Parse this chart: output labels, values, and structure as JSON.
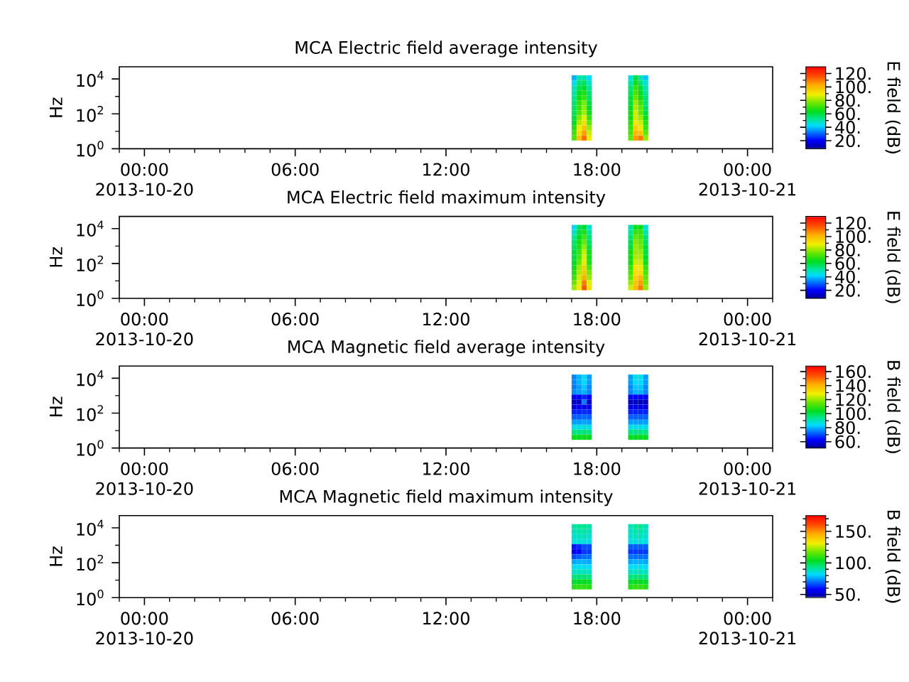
{
  "chart_data": [
    {
      "type": "scatter",
      "title": "MCA Electric field average intensity",
      "ylabel": "Hz",
      "clabel": "E field (dB)",
      "log": "y",
      "marker": "square",
      "x": [
        17.1,
        17.3,
        17.5,
        17.7,
        19.35,
        19.55,
        19.75,
        19.95,
        17.1,
        17.3,
        17.5,
        17.7,
        19.35,
        19.55,
        19.75,
        19.95,
        17.1,
        17.3,
        17.5,
        17.7,
        19.35,
        19.55,
        19.75,
        19.95,
        17.1,
        17.3,
        17.5,
        17.7,
        19.35,
        19.55,
        19.75,
        19.95,
        17.1,
        17.3,
        17.5,
        17.7,
        19.35,
        19.55,
        19.75,
        19.95,
        17.1,
        17.3,
        17.5,
        17.7,
        19.35,
        19.55,
        19.75,
        19.95,
        17.1,
        17.3,
        17.5,
        17.7,
        19.35,
        19.55,
        19.75,
        19.95,
        17.1,
        17.3,
        17.5,
        17.7,
        19.35,
        19.55,
        19.75,
        19.95,
        17.1,
        17.3,
        17.5,
        17.7,
        19.35,
        19.55,
        19.75,
        19.95,
        17.1,
        17.3,
        17.5,
        17.7,
        19.35,
        19.55,
        19.75,
        19.95,
        17.1,
        17.3,
        17.5,
        17.7,
        19.35,
        19.55,
        19.75,
        19.95,
        17.1,
        17.3,
        17.5,
        17.7,
        19.35,
        19.55,
        19.75,
        19.95,
        17.1,
        17.3,
        17.5,
        17.7,
        19.35,
        19.55,
        19.75,
        19.95
      ],
      "values": [
        11700,
        11700,
        11700,
        11700,
        11700,
        11700,
        11700,
        11700,
        6000,
        6000,
        6000,
        6000,
        6000,
        6000,
        6000,
        6000,
        3100,
        3100,
        3100,
        3100,
        3100,
        3100,
        3100,
        3100,
        1600,
        1600,
        1600,
        1600,
        1600,
        1600,
        1600,
        1600,
        830,
        830,
        830,
        830,
        830,
        830,
        830,
        830,
        430,
        430,
        430,
        430,
        430,
        430,
        430,
        430,
        220,
        220,
        220,
        220,
        220,
        220,
        220,
        220,
        113,
        113,
        113,
        113,
        113,
        113,
        113,
        113,
        58,
        58,
        58,
        58,
        58,
        58,
        58,
        58,
        30,
        30,
        30,
        30,
        30,
        30,
        30,
        30,
        15.5,
        15.5,
        15.5,
        15.5,
        15.5,
        15.5,
        15.5,
        15.5,
        8,
        8,
        8,
        8,
        8,
        8,
        8,
        8,
        4.1,
        4.1,
        4.1,
        4.1,
        4.1,
        4.1,
        4.1,
        4.1
      ],
      "cvalues": [
        38,
        50,
        50,
        42,
        45,
        60,
        50,
        40,
        42,
        55,
        57,
        47,
        50,
        65,
        55,
        45,
        48,
        58,
        62,
        52,
        55,
        70,
        60,
        50,
        50,
        62,
        67,
        55,
        57,
        72,
        62,
        52,
        52,
        65,
        70,
        57,
        60,
        75,
        65,
        55,
        55,
        68,
        78,
        60,
        60,
        80,
        70,
        55,
        56,
        70,
        80,
        62,
        62,
        82,
        75,
        57,
        57,
        72,
        82,
        65,
        65,
        85,
        75,
        60,
        60,
        78,
        88,
        70,
        65,
        85,
        80,
        65,
        62,
        82,
        92,
        75,
        68,
        90,
        85,
        68,
        67,
        88,
        98,
        80,
        70,
        95,
        90,
        70,
        70,
        92,
        105,
        85,
        72,
        100,
        97,
        75,
        72,
        98,
        112,
        90,
        75,
        105,
        110,
        80
      ],
      "xlim": [
        -1,
        25
      ],
      "xticks": [
        {
          "value": -1,
          "label": null
        },
        {
          "value": 0,
          "label": "00:00\n2013-10-20"
        },
        {
          "value": 1,
          "label": null
        },
        {
          "value": 2,
          "label": null
        },
        {
          "value": 3,
          "label": null
        },
        {
          "value": 4,
          "label": null
        },
        {
          "value": 5,
          "label": null
        },
        {
          "value": 6,
          "label": "06:00"
        },
        {
          "value": 7,
          "label": null
        },
        {
          "value": 8,
          "label": null
        },
        {
          "value": 9,
          "label": null
        },
        {
          "value": 10,
          "label": null
        },
        {
          "value": 11,
          "label": null
        },
        {
          "value": 12,
          "label": "12:00"
        },
        {
          "value": 13,
          "label": null
        },
        {
          "value": 14,
          "label": null
        },
        {
          "value": 15,
          "label": null
        },
        {
          "value": 16,
          "label": null
        },
        {
          "value": 17,
          "label": null
        },
        {
          "value": 18,
          "label": "18:00"
        },
        {
          "value": 19,
          "label": null
        },
        {
          "value": 20,
          "label": null
        },
        {
          "value": 21,
          "label": null
        },
        {
          "value": 22,
          "label": null
        },
        {
          "value": 23,
          "label": null
        },
        {
          "value": 24,
          "label": "00:00\n2013-10-21"
        },
        {
          "value": 25,
          "label": null
        }
      ],
      "ylim": [
        1,
        50000
      ],
      "yticks": [
        {
          "value": 1,
          "label": "10$^{0}$"
        },
        {
          "value": 10,
          "label": null
        },
        {
          "value": 100,
          "label": "10$^{2}$"
        },
        {
          "value": 1000,
          "label": null
        },
        {
          "value": 10000,
          "label": "10$^{4}$"
        }
      ],
      "clim": [
        8,
        130
      ],
      "cticks": [
        {
          "value": 20,
          "label": "20."
        },
        {
          "value": 30,
          "label": null
        },
        {
          "value": 40,
          "label": "40."
        },
        {
          "value": 50,
          "label": null
        },
        {
          "value": 60,
          "label": "60."
        },
        {
          "value": 70,
          "label": null
        },
        {
          "value": 80,
          "label": "80."
        },
        {
          "value": 90,
          "label": null
        },
        {
          "value": 100,
          "label": "100."
        },
        {
          "value": 110,
          "label": null
        },
        {
          "value": 120,
          "label": "120."
        }
      ]
    },
    {
      "type": "scatter",
      "title": "MCA Electric field maximum intensity",
      "ylabel": "Hz",
      "clabel": "E field (dB)",
      "log": "y",
      "marker": "square",
      "x": [
        17.1,
        17.3,
        17.5,
        17.7,
        19.35,
        19.55,
        19.75,
        19.95,
        17.1,
        17.3,
        17.5,
        17.7,
        19.35,
        19.55,
        19.75,
        19.95,
        17.1,
        17.3,
        17.5,
        17.7,
        19.35,
        19.55,
        19.75,
        19.95,
        17.1,
        17.3,
        17.5,
        17.7,
        19.35,
        19.55,
        19.75,
        19.95,
        17.1,
        17.3,
        17.5,
        17.7,
        19.35,
        19.55,
        19.75,
        19.95,
        17.1,
        17.3,
        17.5,
        17.7,
        19.35,
        19.55,
        19.75,
        19.95,
        17.1,
        17.3,
        17.5,
        17.7,
        19.35,
        19.55,
        19.75,
        19.95,
        17.1,
        17.3,
        17.5,
        17.7,
        19.35,
        19.55,
        19.75,
        19.95,
        17.1,
        17.3,
        17.5,
        17.7,
        19.35,
        19.55,
        19.75,
        19.95,
        17.1,
        17.3,
        17.5,
        17.7,
        19.35,
        19.55,
        19.75,
        19.95,
        17.1,
        17.3,
        17.5,
        17.7,
        19.35,
        19.55,
        19.75,
        19.95,
        17.1,
        17.3,
        17.5,
        17.7,
        19.35,
        19.55,
        19.75,
        19.95,
        17.1,
        17.3,
        17.5,
        17.7,
        19.35,
        19.55,
        19.75,
        19.95
      ],
      "values": [
        11700,
        11700,
        11700,
        11700,
        11700,
        11700,
        11700,
        11700,
        6000,
        6000,
        6000,
        6000,
        6000,
        6000,
        6000,
        6000,
        3100,
        3100,
        3100,
        3100,
        3100,
        3100,
        3100,
        3100,
        1600,
        1600,
        1600,
        1600,
        1600,
        1600,
        1600,
        1600,
        830,
        830,
        830,
        830,
        830,
        830,
        830,
        830,
        430,
        430,
        430,
        430,
        430,
        430,
        430,
        430,
        220,
        220,
        220,
        220,
        220,
        220,
        220,
        220,
        113,
        113,
        113,
        113,
        113,
        113,
        113,
        113,
        58,
        58,
        58,
        58,
        58,
        58,
        58,
        58,
        30,
        30,
        30,
        30,
        30,
        30,
        30,
        30,
        15.5,
        15.5,
        15.5,
        15.5,
        15.5,
        15.5,
        15.5,
        15.5,
        8,
        8,
        8,
        8,
        8,
        8,
        8,
        8,
        4.1,
        4.1,
        4.1,
        4.1,
        4.1,
        4.1,
        4.1,
        4.1
      ],
      "cvalues": [
        42,
        58,
        62,
        47,
        50,
        65,
        65,
        45,
        47,
        60,
        67,
        52,
        52,
        70,
        70,
        50,
        52,
        62,
        72,
        55,
        55,
        75,
        72,
        55,
        55,
        65,
        76,
        57,
        58,
        78,
        75,
        57,
        57,
        67,
        80,
        60,
        60,
        80,
        77,
        60,
        60,
        70,
        85,
        65,
        65,
        80,
        80,
        60,
        60,
        72,
        87,
        66,
        65,
        82,
        82,
        62,
        62,
        75,
        90,
        67,
        65,
        85,
        85,
        65,
        65,
        80,
        95,
        72,
        70,
        90,
        90,
        70,
        67,
        82,
        97,
        77,
        72,
        92,
        92,
        72,
        70,
        85,
        102,
        80,
        75,
        95,
        100,
        75,
        75,
        87,
        110,
        87,
        80,
        97,
        105,
        77,
        80,
        90,
        115,
        92,
        85,
        100,
        110,
        80
      ],
      "xlim": [
        -1,
        25
      ],
      "xticks": [
        {
          "value": -1,
          "label": null
        },
        {
          "value": 0,
          "label": "00:00\n2013-10-20"
        },
        {
          "value": 1,
          "label": null
        },
        {
          "value": 2,
          "label": null
        },
        {
          "value": 3,
          "label": null
        },
        {
          "value": 4,
          "label": null
        },
        {
          "value": 5,
          "label": null
        },
        {
          "value": 6,
          "label": "06:00"
        },
        {
          "value": 7,
          "label": null
        },
        {
          "value": 8,
          "label": null
        },
        {
          "value": 9,
          "label": null
        },
        {
          "value": 10,
          "label": null
        },
        {
          "value": 11,
          "label": null
        },
        {
          "value": 12,
          "label": "12:00"
        },
        {
          "value": 13,
          "label": null
        },
        {
          "value": 14,
          "label": null
        },
        {
          "value": 15,
          "label": null
        },
        {
          "value": 16,
          "label": null
        },
        {
          "value": 17,
          "label": null
        },
        {
          "value": 18,
          "label": "18:00"
        },
        {
          "value": 19,
          "label": null
        },
        {
          "value": 20,
          "label": null
        },
        {
          "value": 21,
          "label": null
        },
        {
          "value": 22,
          "label": null
        },
        {
          "value": 23,
          "label": null
        },
        {
          "value": 24,
          "label": "00:00\n2013-10-21"
        },
        {
          "value": 25,
          "label": null
        }
      ],
      "ylim": [
        1,
        50000
      ],
      "yticks": [
        {
          "value": 1,
          "label": "10$^{0}$"
        },
        {
          "value": 10,
          "label": null
        },
        {
          "value": 100,
          "label": "10$^{2}$"
        },
        {
          "value": 1000,
          "label": null
        },
        {
          "value": 10000,
          "label": "10$^{4}$"
        }
      ],
      "clim": [
        8,
        130
      ],
      "cticks": [
        {
          "value": 20,
          "label": "20."
        },
        {
          "value": 30,
          "label": null
        },
        {
          "value": 40,
          "label": "40."
        },
        {
          "value": 50,
          "label": null
        },
        {
          "value": 60,
          "label": "60."
        },
        {
          "value": 70,
          "label": null
        },
        {
          "value": 80,
          "label": "80."
        },
        {
          "value": 90,
          "label": null
        },
        {
          "value": 100,
          "label": "100."
        },
        {
          "value": 110,
          "label": null
        },
        {
          "value": 120,
          "label": "120."
        }
      ]
    },
    {
      "type": "scatter",
      "title": "MCA Magnetic field average intensity",
      "ylabel": "Hz",
      "clabel": "B field (dB)",
      "log": "y",
      "marker": "square",
      "x": [
        17.1,
        17.3,
        17.5,
        17.7,
        19.35,
        19.55,
        19.75,
        19.95,
        17.1,
        17.3,
        17.5,
        17.7,
        19.35,
        19.55,
        19.75,
        19.95,
        17.1,
        17.3,
        17.5,
        17.7,
        19.35,
        19.55,
        19.75,
        19.95,
        17.1,
        17.3,
        17.5,
        17.7,
        19.35,
        19.55,
        19.75,
        19.95,
        17.1,
        17.3,
        17.5,
        17.7,
        19.35,
        19.55,
        19.75,
        19.95,
        17.1,
        17.3,
        17.5,
        17.7,
        19.35,
        19.55,
        19.75,
        19.95,
        17.1,
        17.3,
        17.5,
        17.7,
        19.35,
        19.55,
        19.75,
        19.95,
        17.1,
        17.3,
        17.5,
        17.7,
        19.35,
        19.55,
        19.75,
        19.95,
        17.1,
        17.3,
        17.5,
        17.7,
        19.35,
        19.55,
        19.75,
        19.95,
        17.1,
        17.3,
        17.5,
        17.7,
        19.35,
        19.55,
        19.75,
        19.95,
        17.1,
        17.3,
        17.5,
        17.7,
        19.35,
        19.55,
        19.75,
        19.95,
        17.1,
        17.3,
        17.5,
        17.7,
        19.35,
        19.55,
        19.75,
        19.95,
        17.1,
        17.3,
        17.5,
        17.7,
        19.35,
        19.55,
        19.75,
        19.95
      ],
      "values": [
        11700,
        11700,
        11700,
        11700,
        11700,
        11700,
        11700,
        11700,
        6000,
        6000,
        6000,
        6000,
        6000,
        6000,
        6000,
        6000,
        3100,
        3100,
        3100,
        3100,
        3100,
        3100,
        3100,
        3100,
        1600,
        1600,
        1600,
        1600,
        1600,
        1600,
        1600,
        1600,
        830,
        830,
        830,
        830,
        830,
        830,
        830,
        830,
        430,
        430,
        430,
        430,
        430,
        430,
        430,
        430,
        220,
        220,
        220,
        220,
        220,
        220,
        220,
        220,
        113,
        113,
        113,
        113,
        113,
        113,
        113,
        113,
        58,
        58,
        58,
        58,
        58,
        58,
        58,
        58,
        30,
        30,
        30,
        30,
        30,
        30,
        30,
        30,
        15.5,
        15.5,
        15.5,
        15.5,
        15.5,
        15.5,
        15.5,
        15.5,
        8,
        8,
        8,
        8,
        8,
        8,
        8,
        8,
        4.1,
        4.1,
        4.1,
        4.1,
        4.1,
        4.1,
        4.1,
        4.1
      ],
      "cvalues": [
        76,
        80,
        85,
        78,
        78,
        86,
        86,
        78,
        76,
        80,
        84,
        78,
        78,
        84,
        84,
        78,
        75,
        78,
        82,
        76,
        76,
        82,
        82,
        76,
        76,
        78,
        80,
        76,
        76,
        80,
        80,
        76,
        62,
        62,
        66,
        62,
        62,
        62,
        62,
        62,
        56,
        56,
        75,
        56,
        56,
        56,
        56,
        56,
        59,
        60,
        61,
        60,
        60,
        60,
        60,
        60,
        66,
        66,
        67,
        66,
        66,
        66,
        66,
        66,
        72,
        72,
        73,
        72,
        72,
        72,
        72,
        72,
        78,
        78,
        79,
        78,
        78,
        78,
        78,
        78,
        86,
        86,
        87,
        86,
        86,
        86,
        86,
        86,
        95,
        95,
        96,
        95,
        95,
        95,
        95,
        95,
        104,
        104,
        105,
        104,
        104,
        104,
        104,
        104
      ],
      "xlim": [
        -1,
        25
      ],
      "xticks": [
        {
          "value": -1,
          "label": null
        },
        {
          "value": 0,
          "label": "00:00\n2013-10-20"
        },
        {
          "value": 1,
          "label": null
        },
        {
          "value": 2,
          "label": null
        },
        {
          "value": 3,
          "label": null
        },
        {
          "value": 4,
          "label": null
        },
        {
          "value": 5,
          "label": null
        },
        {
          "value": 6,
          "label": "06:00"
        },
        {
          "value": 7,
          "label": null
        },
        {
          "value": 8,
          "label": null
        },
        {
          "value": 9,
          "label": null
        },
        {
          "value": 10,
          "label": null
        },
        {
          "value": 11,
          "label": null
        },
        {
          "value": 12,
          "label": "12:00"
        },
        {
          "value": 13,
          "label": null
        },
        {
          "value": 14,
          "label": null
        },
        {
          "value": 15,
          "label": null
        },
        {
          "value": 16,
          "label": null
        },
        {
          "value": 17,
          "label": null
        },
        {
          "value": 18,
          "label": "18:00"
        },
        {
          "value": 19,
          "label": null
        },
        {
          "value": 20,
          "label": null
        },
        {
          "value": 21,
          "label": null
        },
        {
          "value": 22,
          "label": null
        },
        {
          "value": 23,
          "label": null
        },
        {
          "value": 24,
          "label": "00:00\n2013-10-21"
        },
        {
          "value": 25,
          "label": null
        }
      ],
      "ylim": [
        1,
        50000
      ],
      "yticks": [
        {
          "value": 1,
          "label": "10$^{0}$"
        },
        {
          "value": 10,
          "label": null
        },
        {
          "value": 100,
          "label": "10$^{2}$"
        },
        {
          "value": 1000,
          "label": null
        },
        {
          "value": 10000,
          "label": "10$^{4}$"
        }
      ],
      "clim": [
        51,
        168
      ],
      "cticks": [
        {
          "value": 60,
          "label": "60."
        },
        {
          "value": 70,
          "label": null
        },
        {
          "value": 80,
          "label": "80."
        },
        {
          "value": 90,
          "label": null
        },
        {
          "value": 100,
          "label": "100."
        },
        {
          "value": 110,
          "label": null
        },
        {
          "value": 120,
          "label": "120."
        },
        {
          "value": 130,
          "label": null
        },
        {
          "value": 140,
          "label": "140."
        },
        {
          "value": 150,
          "label": null
        },
        {
          "value": 160,
          "label": "160."
        }
      ]
    },
    {
      "type": "scatter",
      "title": "MCA Magnetic field maximum intensity",
      "ylabel": "Hz",
      "clabel": "B field (dB)",
      "log": "y",
      "marker": "square",
      "x": [
        17.1,
        17.3,
        17.5,
        17.7,
        19.35,
        19.55,
        19.75,
        19.95,
        17.1,
        17.3,
        17.5,
        17.7,
        19.35,
        19.55,
        19.75,
        19.95,
        17.1,
        17.3,
        17.5,
        17.7,
        19.35,
        19.55,
        19.75,
        19.95,
        17.1,
        17.3,
        17.5,
        17.7,
        19.35,
        19.55,
        19.75,
        19.95,
        17.1,
        17.3,
        17.5,
        17.7,
        19.35,
        19.55,
        19.75,
        19.95,
        17.1,
        17.3,
        17.5,
        17.7,
        19.35,
        19.55,
        19.75,
        19.95,
        17.1,
        17.3,
        17.5,
        17.7,
        19.35,
        19.55,
        19.75,
        19.95,
        17.1,
        17.3,
        17.5,
        17.7,
        19.35,
        19.55,
        19.75,
        19.95,
        17.1,
        17.3,
        17.5,
        17.7,
        19.35,
        19.55,
        19.75,
        19.95,
        17.1,
        17.3,
        17.5,
        17.7,
        19.35,
        19.55,
        19.75,
        19.95,
        17.1,
        17.3,
        17.5,
        17.7,
        19.35,
        19.55,
        19.75,
        19.95,
        17.1,
        17.3,
        17.5,
        17.7,
        19.35,
        19.55,
        19.75,
        19.95,
        17.1,
        17.3,
        17.5,
        17.7,
        19.35,
        19.55,
        19.75,
        19.95
      ],
      "values": [
        11700,
        11700,
        11700,
        11700,
        11700,
        11700,
        11700,
        11700,
        6000,
        6000,
        6000,
        6000,
        6000,
        6000,
        6000,
        6000,
        3100,
        3100,
        3100,
        3100,
        3100,
        3100,
        3100,
        3100,
        1600,
        1600,
        1600,
        1600,
        1600,
        1600,
        1600,
        1600,
        830,
        830,
        830,
        830,
        830,
        830,
        830,
        830,
        430,
        430,
        430,
        430,
        430,
        430,
        430,
        430,
        220,
        220,
        220,
        220,
        220,
        220,
        220,
        220,
        113,
        113,
        113,
        113,
        113,
        113,
        113,
        113,
        58,
        58,
        58,
        58,
        58,
        58,
        58,
        58,
        30,
        30,
        30,
        30,
        30,
        30,
        30,
        30,
        15.5,
        15.5,
        15.5,
        15.5,
        15.5,
        15.5,
        15.5,
        15.5,
        8,
        8,
        8,
        8,
        8,
        8,
        8,
        8,
        4.1,
        4.1,
        4.1,
        4.1,
        4.1,
        4.1,
        4.1,
        4.1
      ],
      "cvalues": [
        90,
        92,
        92,
        90,
        88,
        92,
        92,
        88,
        88,
        90,
        90,
        88,
        87,
        90,
        90,
        87,
        86,
        88,
        88,
        86,
        86,
        88,
        88,
        86,
        84,
        85,
        85,
        84,
        84,
        85,
        85,
        84,
        60,
        62,
        66,
        66,
        68,
        68,
        68,
        68,
        56,
        58,
        64,
        64,
        64,
        64,
        64,
        64,
        66,
        68,
        70,
        70,
        70,
        70,
        70,
        70,
        76,
        77,
        77,
        76,
        76,
        77,
        77,
        76,
        82,
        83,
        83,
        82,
        82,
        83,
        83,
        82,
        87,
        88,
        88,
        87,
        87,
        88,
        88,
        87,
        94,
        95,
        95,
        94,
        94,
        95,
        95,
        94,
        102,
        103,
        103,
        102,
        102,
        103,
        103,
        102,
        108,
        110,
        110,
        108,
        108,
        110,
        110,
        108
      ],
      "xlim": [
        -1,
        25
      ],
      "xticks": [
        {
          "value": -1,
          "label": null
        },
        {
          "value": 0,
          "label": "00:00\n2013-10-20"
        },
        {
          "value": 1,
          "label": null
        },
        {
          "value": 2,
          "label": null
        },
        {
          "value": 3,
          "label": null
        },
        {
          "value": 4,
          "label": null
        },
        {
          "value": 5,
          "label": null
        },
        {
          "value": 6,
          "label": "06:00"
        },
        {
          "value": 7,
          "label": null
        },
        {
          "value": 8,
          "label": null
        },
        {
          "value": 9,
          "label": null
        },
        {
          "value": 10,
          "label": null
        },
        {
          "value": 11,
          "label": null
        },
        {
          "value": 12,
          "label": "12:00"
        },
        {
          "value": 13,
          "label": null
        },
        {
          "value": 14,
          "label": null
        },
        {
          "value": 15,
          "label": null
        },
        {
          "value": 16,
          "label": null
        },
        {
          "value": 17,
          "label": null
        },
        {
          "value": 18,
          "label": "18:00"
        },
        {
          "value": 19,
          "label": null
        },
        {
          "value": 20,
          "label": null
        },
        {
          "value": 21,
          "label": null
        },
        {
          "value": 22,
          "label": null
        },
        {
          "value": 23,
          "label": null
        },
        {
          "value": 24,
          "label": "00:00\n2013-10-21"
        },
        {
          "value": 25,
          "label": null
        }
      ],
      "ylim": [
        1,
        50000
      ],
      "yticks": [
        {
          "value": 1,
          "label": "10$^{0}$"
        },
        {
          "value": 10,
          "label": null
        },
        {
          "value": 100,
          "label": "10$^{2}$"
        },
        {
          "value": 1000,
          "label": null
        },
        {
          "value": 10000,
          "label": "10$^{4}$"
        }
      ],
      "clim": [
        45,
        175
      ],
      "cticks": [
        {
          "value": 50,
          "label": "50."
        },
        {
          "value": 60,
          "label": null
        },
        {
          "value": 70,
          "label": null
        },
        {
          "value": 80,
          "label": null
        },
        {
          "value": 90,
          "label": null
        },
        {
          "value": 100,
          "label": "100."
        },
        {
          "value": 110,
          "label": null
        },
        {
          "value": 120,
          "label": null
        },
        {
          "value": 130,
          "label": null
        },
        {
          "value": 140,
          "label": null
        },
        {
          "value": 150,
          "label": "150."
        },
        {
          "value": 160,
          "label": null
        },
        {
          "value": 170,
          "label": null
        }
      ]
    }
  ]
}
